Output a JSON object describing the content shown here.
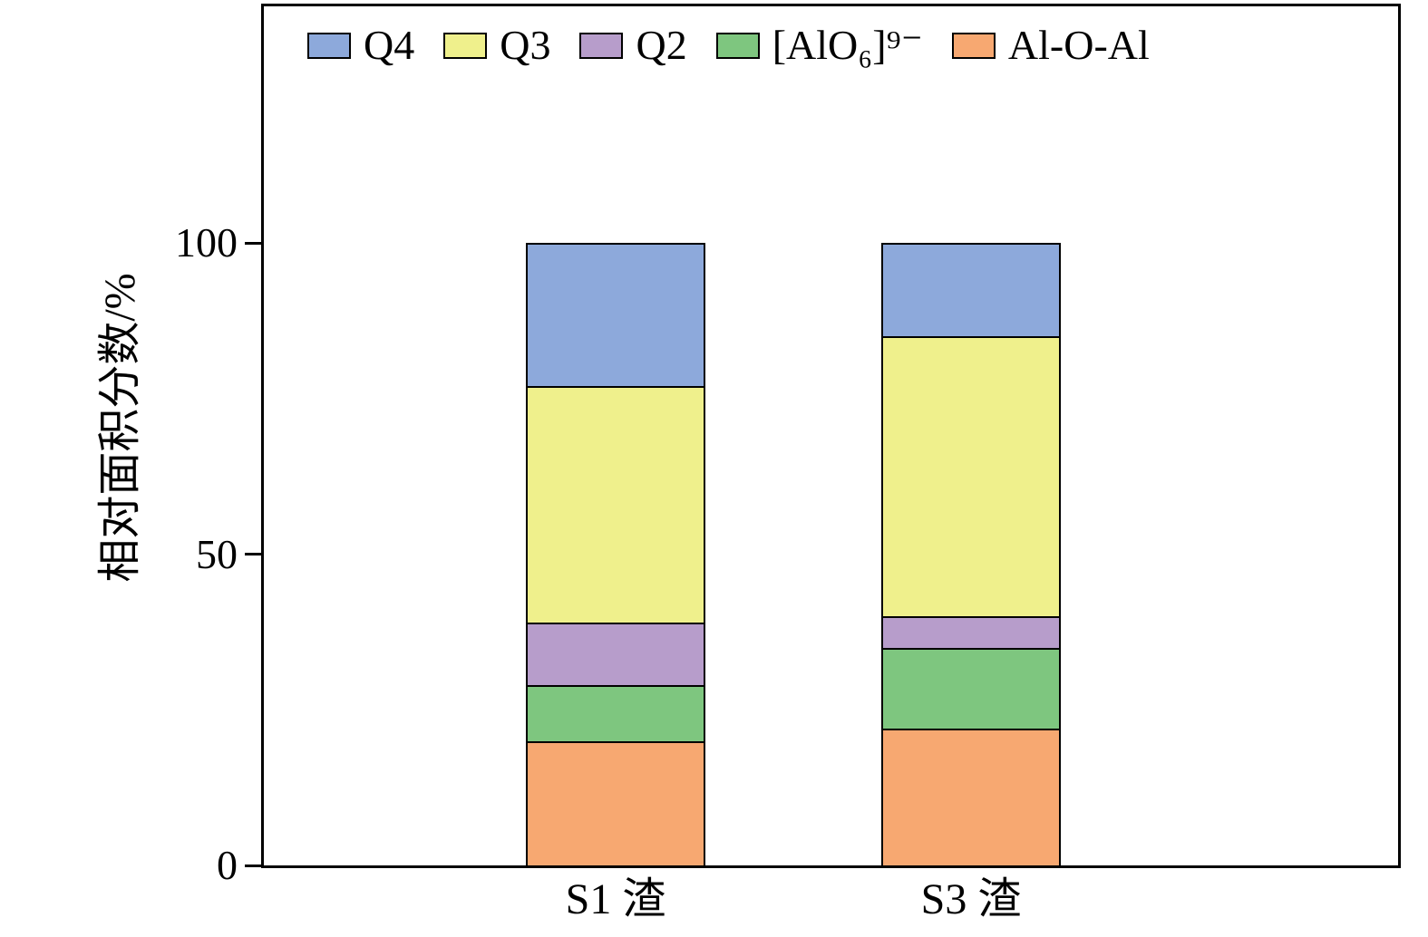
{
  "figure": {
    "background": "#ffffff",
    "axis_color": "#000000"
  },
  "chart_data": {
    "type": "bar",
    "stacked": true,
    "title": "",
    "xlabel": "",
    "ylabel": "相对面积分数/%",
    "ylim": [
      0,
      138
    ],
    "yticks": [
      0,
      50,
      100
    ],
    "grid": false,
    "legend_position": "top-left-inside",
    "categories": [
      "S1 渣",
      "S3 渣"
    ],
    "series": [
      {
        "name": "Q4",
        "color": "#8DA9DB",
        "values": [
          23,
          15
        ]
      },
      {
        "name": "Q3",
        "color": "#EFF08C",
        "values": [
          38,
          45
        ]
      },
      {
        "name": "Q2",
        "color": "#B79DCB",
        "values": [
          10,
          5
        ]
      },
      {
        "name": "[AlO₆]⁹⁻",
        "color": "#7EC67F",
        "values": [
          9,
          13
        ]
      },
      {
        "name": "Al-O-Al",
        "color": "#F7A871",
        "values": [
          20,
          22
        ]
      }
    ]
  }
}
